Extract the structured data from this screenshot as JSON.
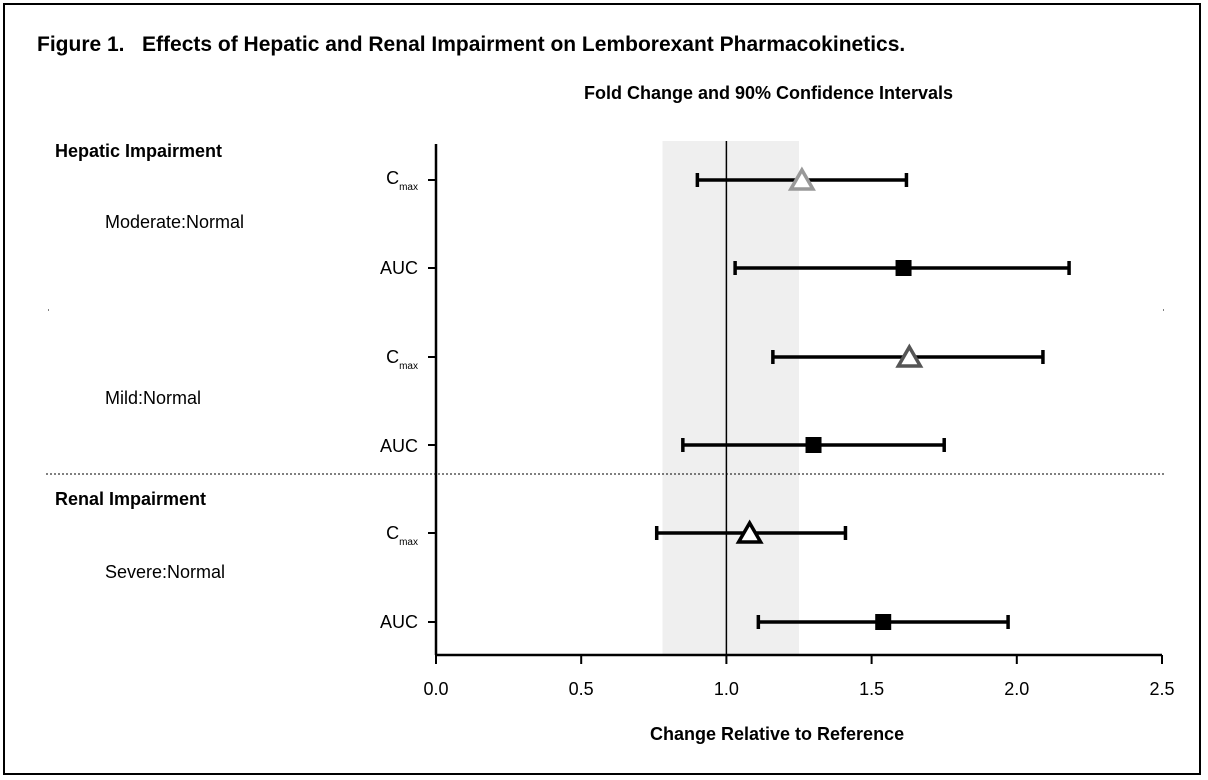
{
  "figure": {
    "title": "Figure 1.   Effects of Hepatic and Renal Impairment on Lemborexant Pharmacokinetics.",
    "subtitle": "Fold Change and 90% Confidence Intervals"
  },
  "sections": [
    {
      "label": "Hepatic Impairment"
    },
    {
      "label": "Renal Impairment"
    }
  ],
  "comparisons": [
    {
      "label": "Moderate:Normal"
    },
    {
      "label": "Mild:Normal"
    },
    {
      "label": "Severe:Normal"
    }
  ],
  "row_labels": {
    "cmax_main": "C",
    "cmax_sub": "max",
    "auc": "AUC"
  },
  "colors": {
    "reference_band": "#efefef",
    "marker_light_gray": "#999999",
    "marker_dark_gray": "#555555",
    "marker_black": "#000000"
  },
  "chart_data": {
    "type": "forest",
    "title": "Fold Change and 90% Confidence Intervals",
    "xlabel": "Change Relative to Reference",
    "xlim": [
      0.0,
      2.5
    ],
    "xticks": [
      "0.0",
      "0.5",
      "1.0",
      "1.5",
      "2.0",
      "2.5"
    ],
    "reference_line": 1.0,
    "reference_band": [
      0.78,
      1.25
    ],
    "rows": [
      {
        "section": "Hepatic Impairment",
        "comparison": "Moderate:Normal",
        "parameter": "Cmax",
        "estimate": 1.26,
        "ci": [
          0.9,
          1.62
        ],
        "marker": "triangle-open",
        "color": "#999999"
      },
      {
        "section": "Hepatic Impairment",
        "comparison": "Moderate:Normal",
        "parameter": "AUC",
        "estimate": 1.61,
        "ci": [
          1.03,
          2.18
        ],
        "marker": "square-filled",
        "color": "#000000"
      },
      {
        "section": "Hepatic Impairment",
        "comparison": "Mild:Normal",
        "parameter": "Cmax",
        "estimate": 1.63,
        "ci": [
          1.16,
          2.09
        ],
        "marker": "triangle-open",
        "color": "#555555"
      },
      {
        "section": "Hepatic Impairment",
        "comparison": "Mild:Normal",
        "parameter": "AUC",
        "estimate": 1.3,
        "ci": [
          0.85,
          1.75
        ],
        "marker": "square-filled",
        "color": "#000000"
      },
      {
        "section": "Renal Impairment",
        "comparison": "Severe:Normal",
        "parameter": "Cmax",
        "estimate": 1.08,
        "ci": [
          0.76,
          1.41
        ],
        "marker": "triangle-open",
        "color": "#000000"
      },
      {
        "section": "Renal Impairment",
        "comparison": "Severe:Normal",
        "parameter": "AUC",
        "estimate": 1.54,
        "ci": [
          1.11,
          1.97
        ],
        "marker": "square-filled",
        "color": "#000000"
      }
    ],
    "grid": false,
    "legend": "none"
  }
}
